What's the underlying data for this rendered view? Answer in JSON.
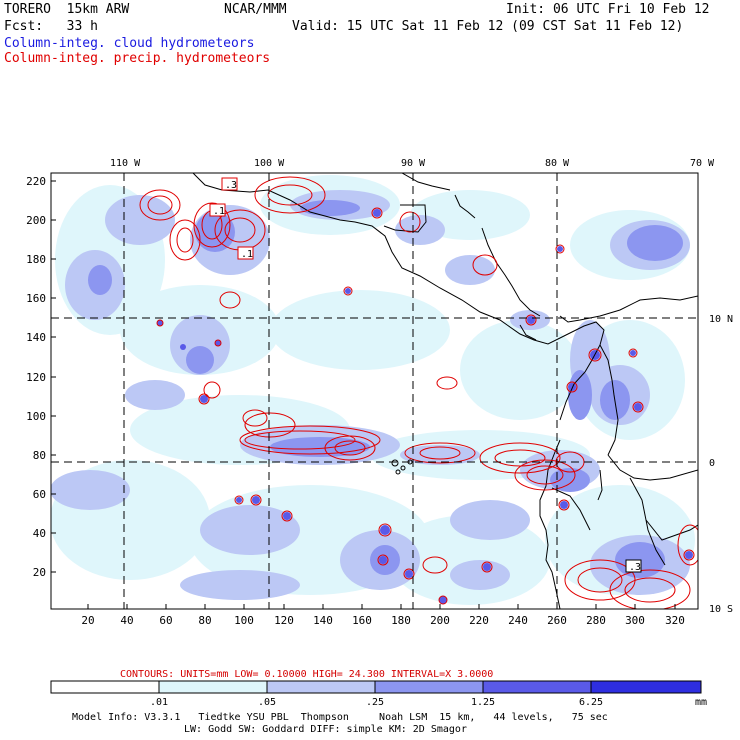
{
  "header": {
    "model": "TORERO  15km ARW",
    "center": "NCAR/MMM",
    "init": "Init: 06 UTC Fri 10 Feb 12",
    "fcst": "Fcst:   33 h",
    "valid": "Valid: 15 UTC Sat 11 Feb 12 (09 CST Sat 11 Feb 12)",
    "legend_cloud": "Column-integ. cloud hydrometeors",
    "legend_precip": "Column-integ. precip. hydrometeors"
  },
  "axes": {
    "lon_labels": [
      "110 W",
      "100 W",
      "90 W",
      "80 W",
      "70 W"
    ],
    "lat_labels": [
      "10 N",
      "0",
      "10 S"
    ],
    "y_ticks": [
      "220",
      "200",
      "180",
      "160",
      "140",
      "120",
      "100",
      "80",
      "60",
      "40",
      "20"
    ],
    "x_ticks": [
      "20",
      "40",
      "60",
      "80",
      "100",
      "120",
      "140",
      "160",
      "180",
      "200",
      "220",
      "240",
      "260",
      "280",
      "300",
      "320"
    ]
  },
  "contour_labels": [
    ".3",
    ".1",
    ".1",
    ".3"
  ],
  "contours_info": "CONTOURS:  UNITS=mm  LOW= 0.10000      HIGH=  24.300      INTERVAL=X  3.0000",
  "colorbar": {
    "labels": [
      ".01",
      ".05",
      ".25",
      "1.25",
      "6.25"
    ],
    "unit": "mm",
    "colors": [
      "#ffffff",
      "#dff6fb",
      "#bcc8f5",
      "#8c96f0",
      "#5a5ae8",
      "#2e2ee0"
    ]
  },
  "footer": {
    "line1": "Model Info: V3.3.1   Tiedtke YSU PBL  Thompson     Noah LSM  15 km,   44 levels,   75 sec",
    "line2": "LW: Godd SW: Goddard DIFF: simple KM: 2D Smagor"
  }
}
